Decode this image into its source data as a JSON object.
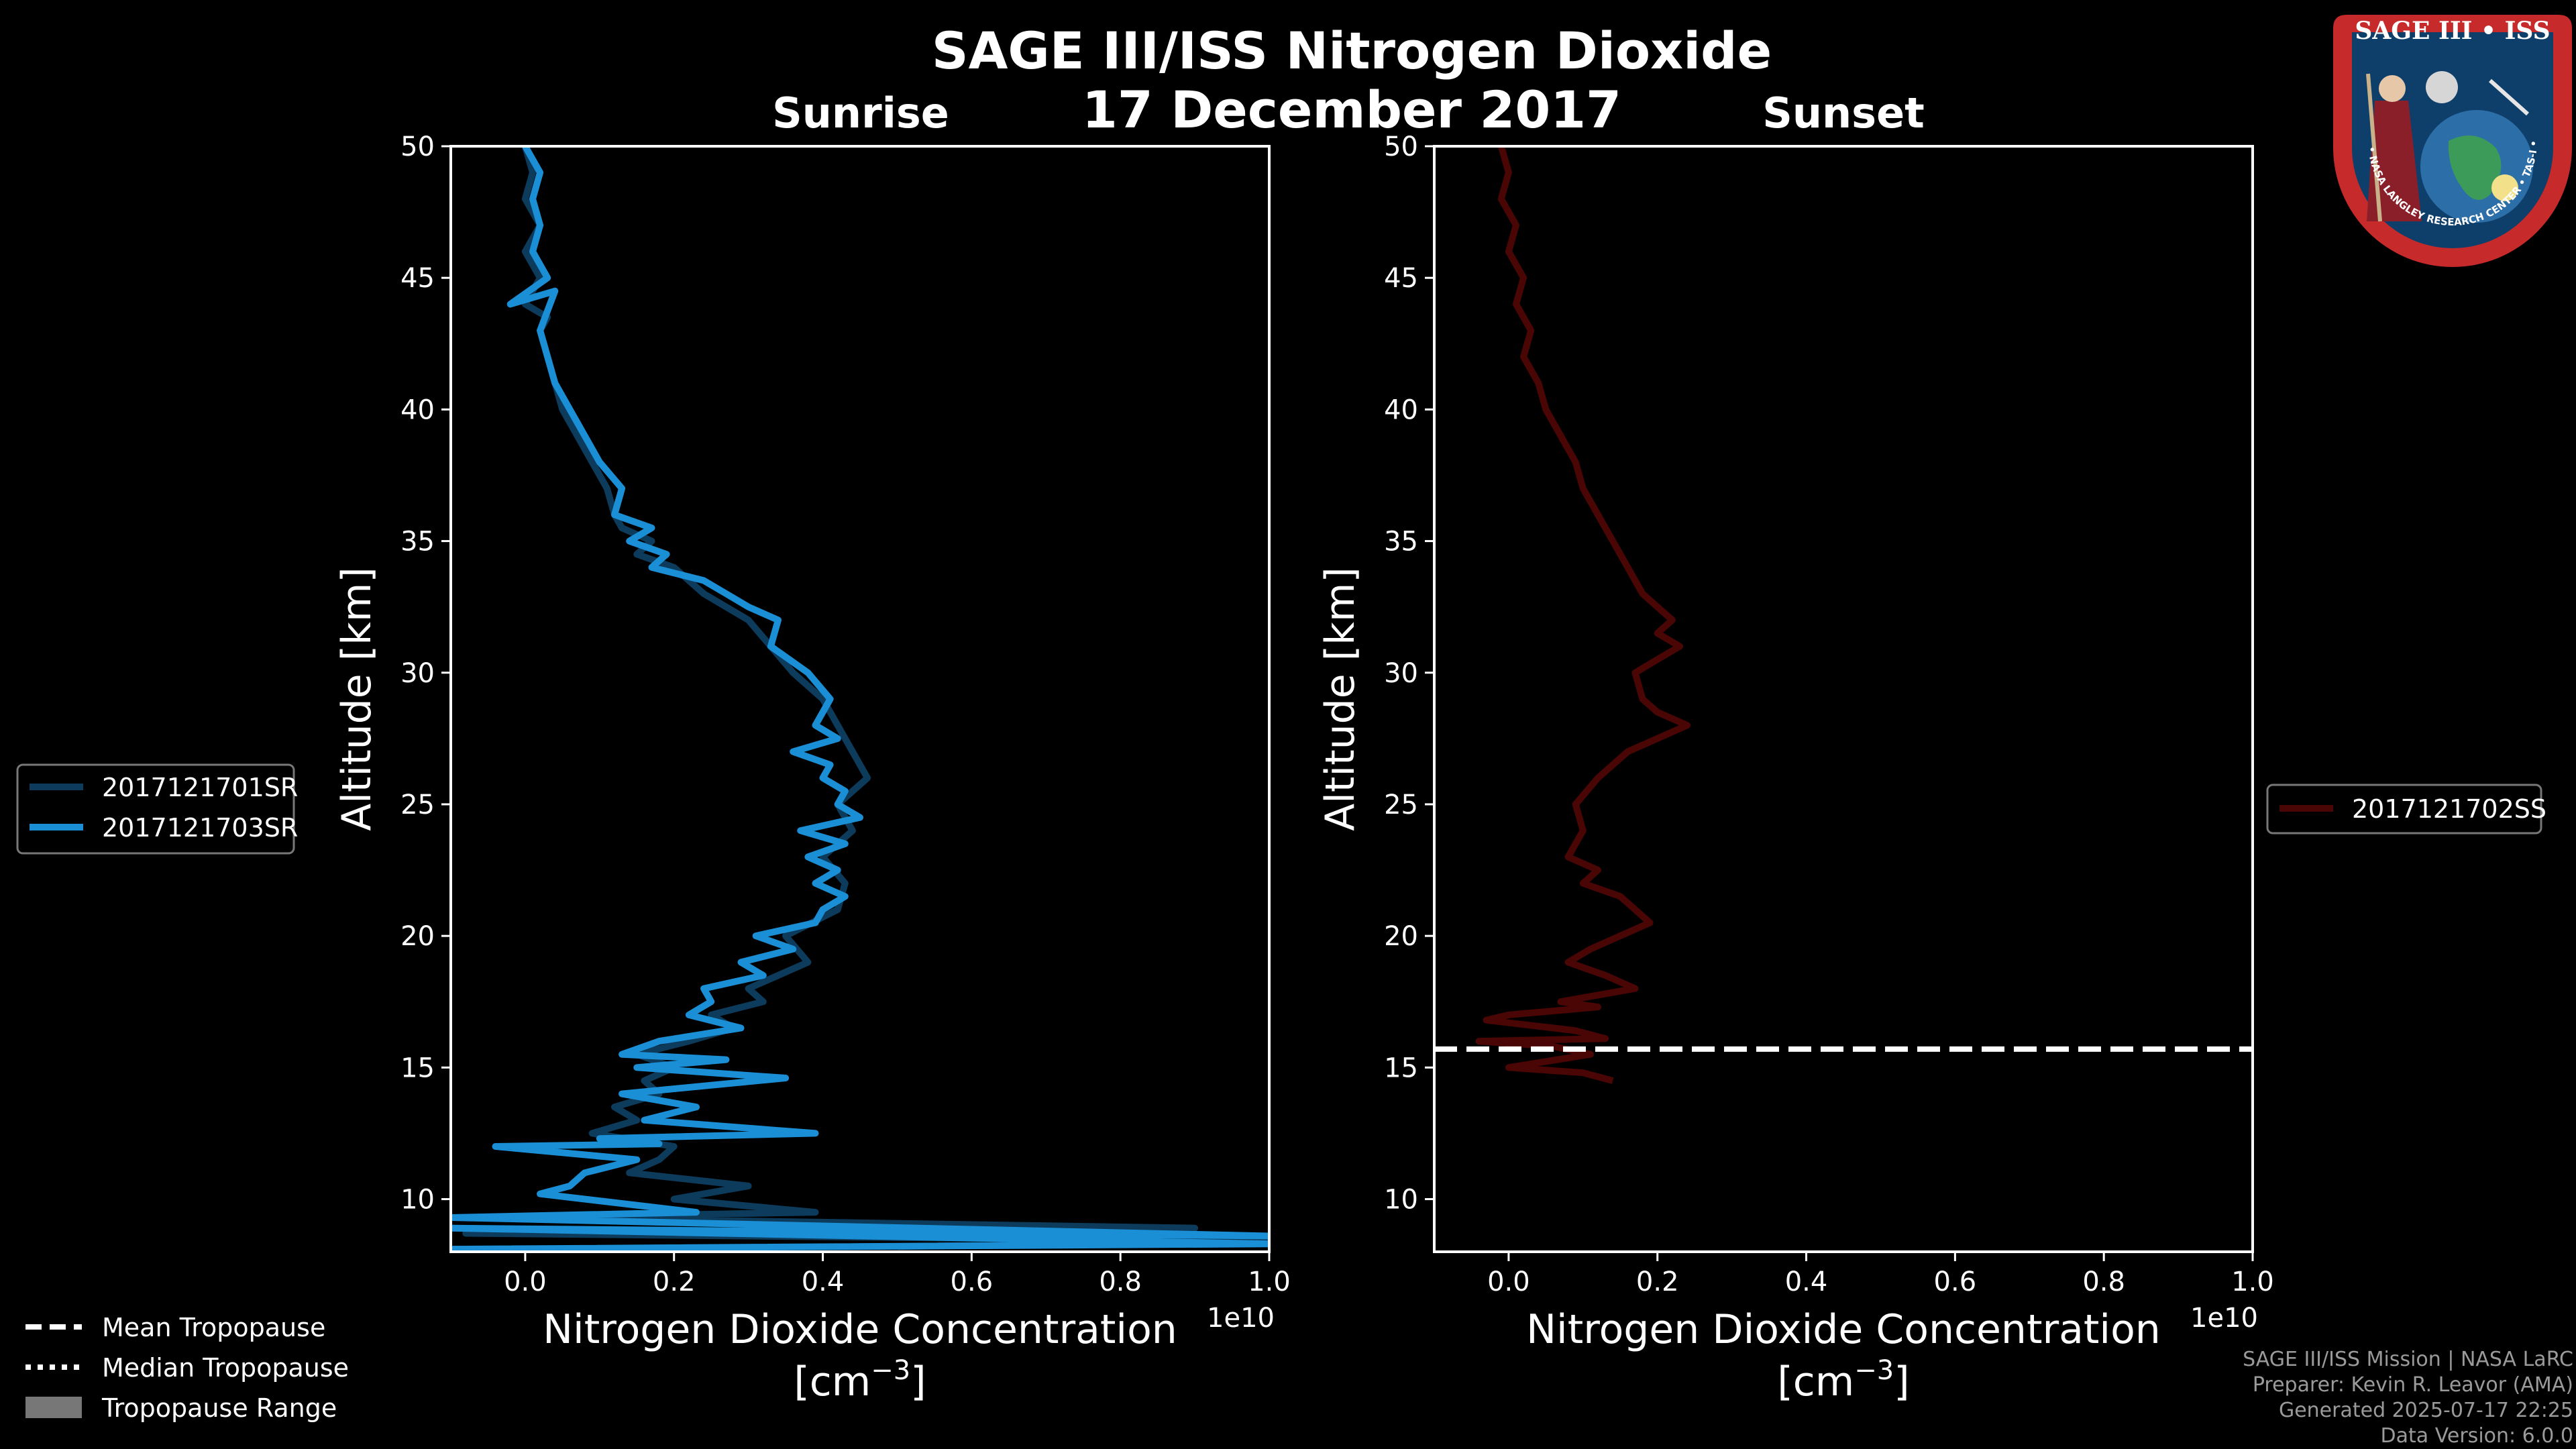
{
  "chart_data": {
    "type": "line",
    "title": "SAGE III/ISS Nitrogen Dioxide",
    "date": "17 December 2017",
    "panels": [
      {
        "subtitle": "Sunrise",
        "xlabel_line1": "Nitrogen Dioxide Concentration",
        "xlabel_line2": "[cm",
        "xlabel_exp": "−3",
        "xlabel_close": "]",
        "ylabel": "Altitude [km]",
        "xlim": [
          -0.1,
          1.0
        ],
        "ylim": [
          8,
          50
        ],
        "x_ticks": [
          0.0,
          0.2,
          0.4,
          0.6,
          0.8,
          1.0
        ],
        "x_tick_labels": [
          "0.0",
          "0.2",
          "0.4",
          "0.6",
          "0.8",
          "1.0"
        ],
        "y_ticks": [
          10,
          15,
          20,
          25,
          30,
          35,
          40,
          45,
          50
        ],
        "y_tick_labels": [
          "10",
          "15",
          "20",
          "25",
          "30",
          "35",
          "40",
          "45",
          "50"
        ],
        "offset_label": "1e10",
        "series": [
          {
            "name": "2017121701SR",
            "color": "#0d3b5c",
            "points": [
              [
                0.0,
                50
              ],
              [
                0.01,
                49
              ],
              [
                0.0,
                48
              ],
              [
                0.02,
                47
              ],
              [
                0.0,
                46
              ],
              [
                0.02,
                45
              ],
              [
                0.0,
                44
              ],
              [
                0.03,
                43.5
              ],
              [
                0.02,
                43
              ],
              [
                0.03,
                42
              ],
              [
                0.04,
                41
              ],
              [
                0.05,
                40
              ],
              [
                0.07,
                39
              ],
              [
                0.09,
                38
              ],
              [
                0.11,
                37
              ],
              [
                0.12,
                36
              ],
              [
                0.13,
                35.5
              ],
              [
                0.17,
                35
              ],
              [
                0.15,
                34.5
              ],
              [
                0.2,
                34
              ],
              [
                0.24,
                33
              ],
              [
                0.3,
                32
              ],
              [
                0.33,
                31
              ],
              [
                0.36,
                30
              ],
              [
                0.4,
                29
              ],
              [
                0.42,
                28
              ],
              [
                0.44,
                27
              ],
              [
                0.46,
                26
              ],
              [
                0.42,
                25
              ],
              [
                0.44,
                24
              ],
              [
                0.4,
                23
              ],
              [
                0.43,
                22
              ],
              [
                0.42,
                21
              ],
              [
                0.35,
                20
              ],
              [
                0.38,
                19
              ],
              [
                0.34,
                18.5
              ],
              [
                0.3,
                18
              ],
              [
                0.32,
                17.5
              ],
              [
                0.25,
                17
              ],
              [
                0.28,
                16.5
              ],
              [
                0.22,
                16
              ],
              [
                0.15,
                15.5
              ],
              [
                0.2,
                15
              ],
              [
                0.16,
                14.5
              ],
              [
                0.18,
                14
              ],
              [
                0.12,
                13.5
              ],
              [
                0.15,
                13
              ],
              [
                0.09,
                12.5
              ],
              [
                0.2,
                12
              ],
              [
                0.18,
                11.5
              ],
              [
                0.14,
                11
              ],
              [
                0.3,
                10.5
              ],
              [
                0.2,
                10
              ],
              [
                0.39,
                9.5
              ],
              [
                0.0,
                9.3
              ],
              [
                0.9,
                8.9
              ],
              [
                -0.08,
                8.7
              ],
              [
                1.0,
                8.4
              ],
              [
                0.5,
                8.2
              ]
            ]
          },
          {
            "name": "2017121703SR",
            "color": "#1a8fd6",
            "points": [
              [
                0.0,
                50
              ],
              [
                0.02,
                49
              ],
              [
                0.01,
                48
              ],
              [
                0.02,
                47
              ],
              [
                0.01,
                46
              ],
              [
                0.03,
                45
              ],
              [
                -0.02,
                44
              ],
              [
                0.04,
                44.5
              ],
              [
                0.02,
                43
              ],
              [
                0.03,
                42
              ],
              [
                0.04,
                41
              ],
              [
                0.06,
                40
              ],
              [
                0.08,
                39
              ],
              [
                0.1,
                38
              ],
              [
                0.13,
                37
              ],
              [
                0.12,
                36
              ],
              [
                0.17,
                35.5
              ],
              [
                0.14,
                35
              ],
              [
                0.19,
                34.5
              ],
              [
                0.17,
                34
              ],
              [
                0.24,
                33.5
              ],
              [
                0.27,
                33
              ],
              [
                0.3,
                32.5
              ],
              [
                0.34,
                32
              ],
              [
                0.33,
                31
              ],
              [
                0.38,
                30
              ],
              [
                0.41,
                29
              ],
              [
                0.39,
                28
              ],
              [
                0.42,
                27.5
              ],
              [
                0.36,
                27
              ],
              [
                0.41,
                26.5
              ],
              [
                0.4,
                26
              ],
              [
                0.43,
                25.5
              ],
              [
                0.42,
                25
              ],
              [
                0.45,
                24.5
              ],
              [
                0.37,
                24
              ],
              [
                0.43,
                23.5
              ],
              [
                0.38,
                23
              ],
              [
                0.42,
                22.5
              ],
              [
                0.39,
                22
              ],
              [
                0.43,
                21.5
              ],
              [
                0.4,
                21
              ],
              [
                0.39,
                20.5
              ],
              [
                0.31,
                20
              ],
              [
                0.36,
                19.5
              ],
              [
                0.29,
                19
              ],
              [
                0.32,
                18.5
              ],
              [
                0.24,
                18
              ],
              [
                0.25,
                17.5
              ],
              [
                0.22,
                17
              ],
              [
                0.29,
                16.5
              ],
              [
                0.18,
                16
              ],
              [
                0.13,
                15.5
              ],
              [
                0.27,
                15.3
              ],
              [
                0.15,
                15
              ],
              [
                0.35,
                14.6
              ],
              [
                0.13,
                14
              ],
              [
                0.23,
                13.5
              ],
              [
                0.16,
                13
              ],
              [
                0.39,
                12.5
              ],
              [
                0.1,
                12.3
              ],
              [
                0.18,
                12.1
              ],
              [
                -0.04,
                12
              ],
              [
                0.15,
                11.5
              ],
              [
                0.08,
                11
              ],
              [
                0.06,
                10.5
              ],
              [
                0.02,
                10.2
              ],
              [
                0.23,
                9.5
              ],
              [
                -0.1,
                9.3
              ],
              [
                1.0,
                8.6
              ],
              [
                -0.1,
                8.9
              ],
              [
                1.0,
                8.3
              ],
              [
                -0.1,
                8.1
              ]
            ]
          }
        ]
      },
      {
        "subtitle": "Sunset",
        "xlabel_line1": "Nitrogen Dioxide Concentration",
        "xlabel_line2": "[cm",
        "xlabel_exp": "−3",
        "xlabel_close": "]",
        "ylabel": "Altitude [km]",
        "xlim": [
          -0.1,
          1.0
        ],
        "ylim": [
          8,
          50
        ],
        "x_ticks": [
          0.0,
          0.2,
          0.4,
          0.6,
          0.8,
          1.0
        ],
        "x_tick_labels": [
          "0.0",
          "0.2",
          "0.4",
          "0.6",
          "0.8",
          "1.0"
        ],
        "y_ticks": [
          10,
          15,
          20,
          25,
          30,
          35,
          40,
          45,
          50
        ],
        "y_tick_labels": [
          "10",
          "15",
          "20",
          "25",
          "30",
          "35",
          "40",
          "45",
          "50"
        ],
        "offset_label": "1e10",
        "tropopause_mean": 15.7,
        "series": [
          {
            "name": "2017121702SS",
            "color": "#4a0505",
            "points": [
              [
                -0.01,
                50
              ],
              [
                0.0,
                49
              ],
              [
                -0.01,
                48
              ],
              [
                0.01,
                47
              ],
              [
                0.0,
                46
              ],
              [
                0.02,
                45
              ],
              [
                0.01,
                44
              ],
              [
                0.03,
                43
              ],
              [
                0.02,
                42
              ],
              [
                0.04,
                41
              ],
              [
                0.05,
                40
              ],
              [
                0.07,
                39
              ],
              [
                0.09,
                38
              ],
              [
                0.1,
                37
              ],
              [
                0.12,
                36
              ],
              [
                0.14,
                35
              ],
              [
                0.16,
                34
              ],
              [
                0.18,
                33
              ],
              [
                0.2,
                32.5
              ],
              [
                0.22,
                32
              ],
              [
                0.2,
                31.5
              ],
              [
                0.23,
                31
              ],
              [
                0.2,
                30.5
              ],
              [
                0.17,
                30
              ],
              [
                0.18,
                29
              ],
              [
                0.2,
                28.5
              ],
              [
                0.24,
                28
              ],
              [
                0.16,
                27
              ],
              [
                0.12,
                26
              ],
              [
                0.09,
                25
              ],
              [
                0.1,
                24
              ],
              [
                0.08,
                23
              ],
              [
                0.12,
                22.5
              ],
              [
                0.1,
                22
              ],
              [
                0.15,
                21.5
              ],
              [
                0.19,
                20.5
              ],
              [
                0.15,
                20
              ],
              [
                0.11,
                19.5
              ],
              [
                0.08,
                19
              ],
              [
                0.13,
                18.5
              ],
              [
                0.17,
                18
              ],
              [
                0.07,
                17.5
              ],
              [
                0.12,
                17.3
              ],
              [
                0.0,
                17
              ],
              [
                -0.03,
                16.8
              ],
              [
                0.09,
                16.4
              ],
              [
                0.13,
                16.1
              ],
              [
                -0.04,
                16
              ],
              [
                0.06,
                15.8
              ],
              [
                0.11,
                15.5
              ],
              [
                0.0,
                15
              ],
              [
                0.1,
                14.8
              ],
              [
                0.14,
                14.5
              ]
            ]
          }
        ]
      }
    ],
    "legend_left": [
      "2017121701SR",
      "2017121703SR"
    ],
    "legend_right": [
      "2017121702SS"
    ],
    "tropopause_legend": [
      "Mean Tropopause",
      "Median Tropopause",
      "Tropopause Range"
    ],
    "footer": [
      "SAGE III/ISS Mission | NASA LaRC",
      "Preparer: Kevin R. Leavor (AMA)",
      "Generated 2025-07-17 22:25",
      "Data Version: 6.0.0"
    ],
    "logo": {
      "top_text": "SAGE III • ISS",
      "ring_text": "BALL • NASA LANGLEY RESEARCH CENTER • TAS-I • ESA"
    }
  }
}
